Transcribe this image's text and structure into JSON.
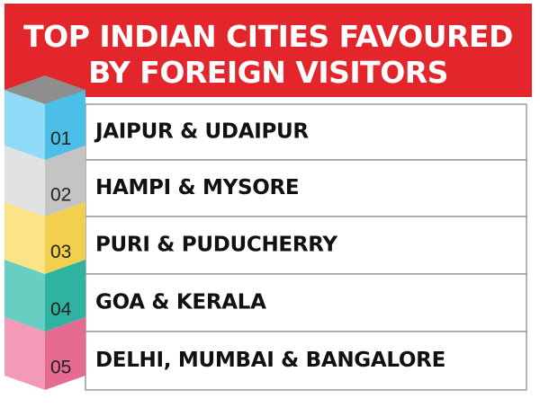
{
  "header": {
    "title_lines": [
      "TOP INDIAN CITIES FAVOURED",
      "BY FOREIGN VISITORS"
    ]
  },
  "items": [
    {
      "number": "01",
      "label": "JAIPUR & UDAIPUR"
    },
    {
      "number": "02",
      "label": "HAMPI & MYSORE"
    },
    {
      "number": "03",
      "label": "PURI & PUDUCHERRY"
    },
    {
      "number": "04",
      "label": "GOA & KERALA"
    },
    {
      "number": "05",
      "label": "DELHI, MUMBAI & BANGALORE"
    }
  ]
}
